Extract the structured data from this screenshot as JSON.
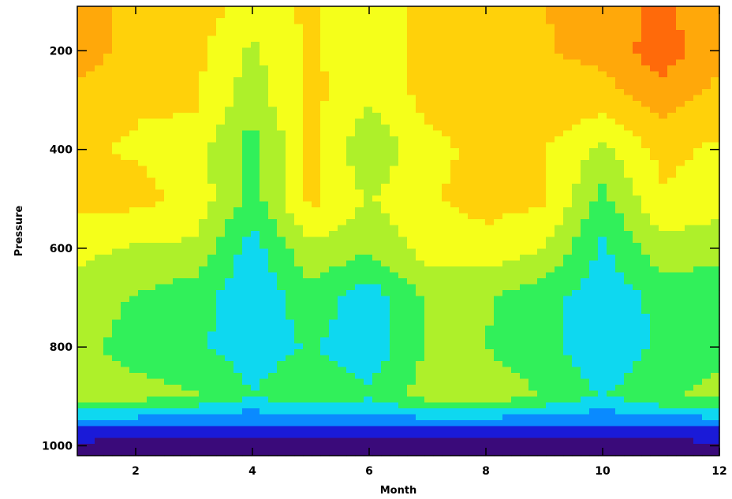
{
  "chart_data": {
    "type": "heatmap",
    "title": "",
    "xlabel": "Month",
    "ylabel": "Pressure",
    "xlim": [
      1,
      12
    ],
    "ylim": [
      1020,
      110
    ],
    "y_reversed": true,
    "x_ticks": [
      2,
      4,
      6,
      8,
      10,
      12
    ],
    "y_ticks": [
      200,
      400,
      600,
      800,
      1000
    ],
    "colormap": [
      "#3a0a7a",
      "#1a1ad8",
      "#0a8aff",
      "#0ed8f0",
      "#31f05a",
      "#aef02a",
      "#f5ff1a",
      "#ffd10a",
      "#ffa80a",
      "#ff6a0a",
      "#ff1010"
    ],
    "x": [
      1,
      2,
      3,
      4,
      5,
      6,
      7,
      8,
      9,
      10,
      11,
      12
    ],
    "y": [
      120,
      200,
      300,
      400,
      500,
      600,
      700,
      800,
      900,
      960,
      1000,
      1020
    ],
    "z": [
      [
        8.6,
        7.6,
        7.6,
        6.4,
        7.2,
        6.2,
        7.5,
        7.8,
        8.0,
        8.2,
        9.3,
        8.1
      ],
      [
        8.5,
        7.7,
        7.3,
        5.8,
        7.2,
        6.3,
        7.5,
        7.8,
        7.9,
        8.3,
        9.6,
        8.2
      ],
      [
        7.6,
        7.1,
        7.2,
        5.4,
        7.3,
        6.1,
        7.3,
        7.6,
        7.7,
        7.5,
        8.5,
        7.6
      ],
      [
        7.1,
        6.9,
        6.5,
        4.5,
        7.2,
        5.2,
        6.6,
        7.4,
        7.0,
        5.8,
        7.3,
        6.8
      ],
      [
        7.4,
        7.3,
        6.7,
        4.6,
        7.3,
        5.9,
        6.9,
        7.4,
        7.2,
        4.7,
        6.9,
        6.5
      ],
      [
        6.3,
        5.9,
        5.8,
        3.5,
        5.8,
        5.2,
        6.4,
        6.6,
        6.0,
        3.8,
        5.6,
        5.3
      ],
      [
        5.6,
        4.9,
        4.4,
        3.2,
        4.6,
        3.4,
        5.2,
        5.1,
        4.4,
        3.3,
        4.3,
        4.5
      ],
      [
        5.3,
        4.6,
        4.2,
        3.5,
        4.1,
        3.3,
        5.1,
        5.0,
        4.3,
        3.2,
        4.2,
        4.8
      ],
      [
        5.6,
        5.4,
        5.1,
        4.0,
        4.9,
        4.2,
        5.5,
        5.6,
        5.0,
        3.9,
        4.9,
        5.3
      ],
      [
        2.2,
        2.0,
        1.8,
        1.9,
        2.0,
        1.8,
        2.1,
        2.0,
        1.9,
        1.8,
        2.0,
        2.1
      ],
      [
        0.7,
        0.5,
        0.4,
        0.5,
        0.6,
        0.4,
        0.6,
        0.5,
        0.5,
        0.4,
        0.6,
        0.7
      ],
      [
        0.3,
        0.2,
        0.2,
        0.2,
        0.3,
        0.2,
        0.3,
        0.2,
        0.2,
        0.2,
        0.3,
        0.3
      ]
    ],
    "legend": "none",
    "grid": false
  }
}
